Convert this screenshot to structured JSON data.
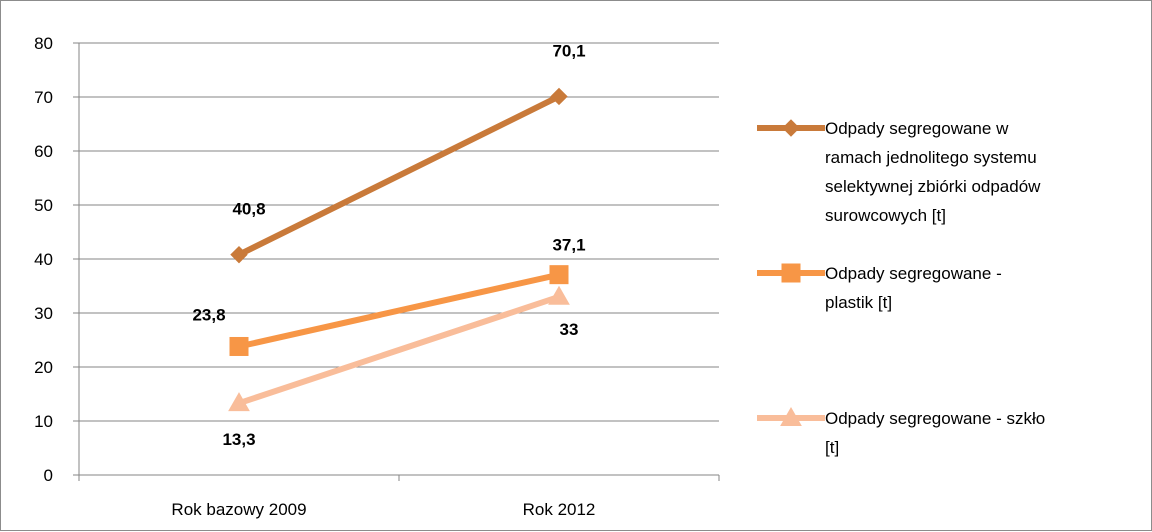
{
  "chart_data": {
    "type": "line",
    "title": "",
    "xlabel": "",
    "ylabel": "",
    "categories": [
      "Rok bazowy 2009",
      "Rok 2012"
    ],
    "ylim": [
      0,
      80
    ],
    "yticks": [
      0,
      10,
      20,
      30,
      40,
      50,
      60,
      70,
      80
    ],
    "grid": true,
    "legend_position": "right",
    "series": [
      {
        "name": "Odpady segregowane w ramach jednolitego systemu selektywnej zbiórki odpadów surowcowych [t]",
        "legend_lines": [
          "Odpady segregowane w",
          "ramach jednolitego systemu",
          "selektywnej zbiórki odpadów",
          "surowcowych [t]"
        ],
        "values": [
          40.8,
          70.1
        ],
        "labels": [
          "40,8",
          "70,1"
        ],
        "color": "#c97a3a",
        "marker": "diamond"
      },
      {
        "name": "Odpady segregowane - plastik [t]",
        "legend_lines": [
          "Odpady segregowane -",
          "plastik [t]"
        ],
        "values": [
          23.8,
          37.1
        ],
        "labels": [
          "23,8",
          "37,1"
        ],
        "color": "#f79646",
        "marker": "square"
      },
      {
        "name": "Odpady segregowane - szkło [t]",
        "legend_lines": [
          "Odpady segregowane - szkło",
          "[t]"
        ],
        "values": [
          13.3,
          33
        ],
        "labels": [
          "13,3",
          "33"
        ],
        "color": "#f9bd9a",
        "marker": "triangle"
      }
    ]
  }
}
